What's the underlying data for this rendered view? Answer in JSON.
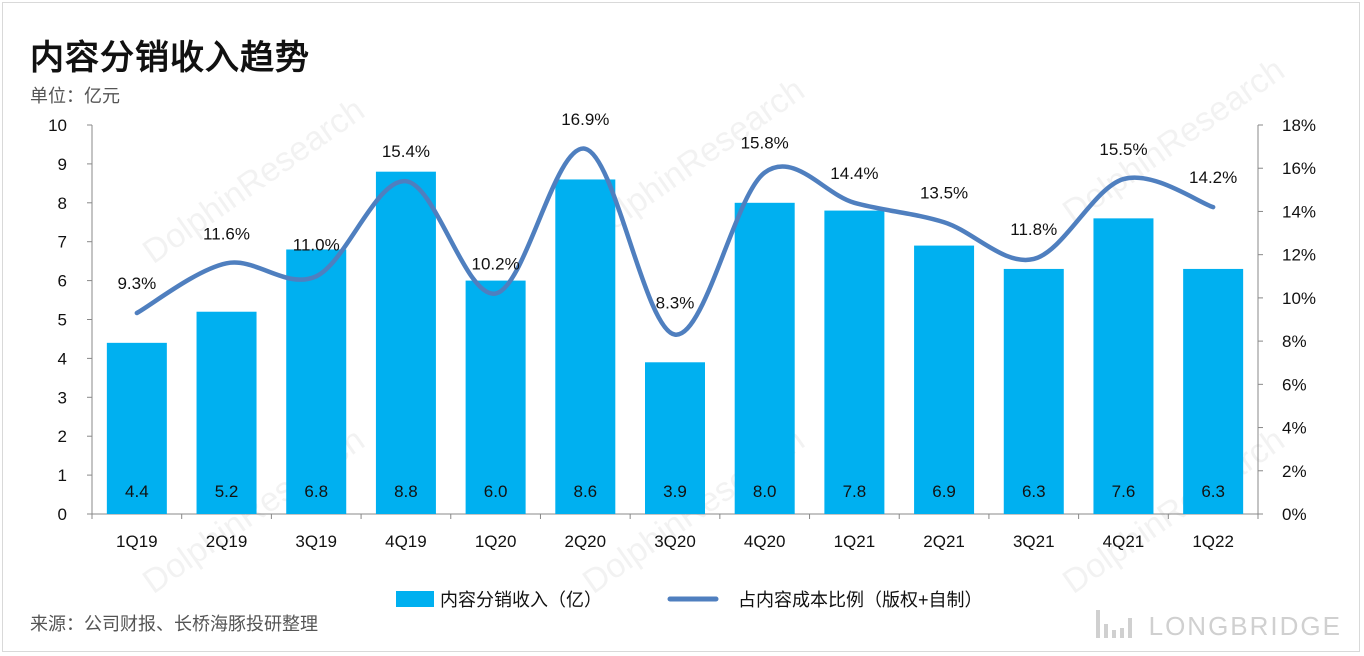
{
  "title": "内容分销收入趋势",
  "unit_label": "单位：亿元",
  "source": "来源：公司财报、长桥海豚投研整理",
  "brand": "LONGBRIDGE",
  "watermark": "DolphinResearch",
  "colors": {
    "bar": "#00b0f0",
    "line": "#4f7fbf",
    "axis": "#888888",
    "text": "#111111"
  },
  "chart_data": {
    "type": "bar+line",
    "categories": [
      "1Q19",
      "2Q19",
      "3Q19",
      "4Q19",
      "1Q20",
      "2Q20",
      "3Q20",
      "4Q20",
      "1Q21",
      "2Q21",
      "3Q21",
      "4Q21",
      "1Q22"
    ],
    "series": [
      {
        "name": "内容分销收入（亿）",
        "type": "bar",
        "axis": "left",
        "values": [
          4.4,
          5.2,
          6.8,
          8.8,
          6.0,
          8.6,
          3.9,
          8.0,
          7.8,
          6.9,
          6.3,
          7.6,
          6.3
        ],
        "labels": [
          "4.4",
          "5.2",
          "6.8",
          "8.8",
          "6.0",
          "8.6",
          "3.9",
          "8.0",
          "7.8",
          "6.9",
          "6.3",
          "7.6",
          "6.3"
        ]
      },
      {
        "name": "占内容成本比例（版权+自制）",
        "type": "line",
        "axis": "right",
        "values": [
          9.3,
          11.6,
          11.0,
          15.4,
          10.2,
          16.9,
          8.3,
          15.8,
          14.4,
          13.5,
          11.8,
          15.5,
          14.2
        ],
        "labels": [
          "9.3%",
          "11.6%",
          "11.0%",
          "15.4%",
          "10.2%",
          "16.9%",
          "8.3%",
          "15.8%",
          "14.4%",
          "13.5%",
          "11.8%",
          "15.5%",
          "14.2%"
        ]
      }
    ],
    "y_left": {
      "min": 0,
      "max": 10,
      "ticks": [
        "0",
        "1",
        "2",
        "3",
        "4",
        "5",
        "6",
        "7",
        "8",
        "9",
        "10"
      ]
    },
    "y_right": {
      "min": 0,
      "max": 18,
      "ticks": [
        "0%",
        "2%",
        "4%",
        "6%",
        "8%",
        "10%",
        "12%",
        "14%",
        "16%",
        "18%"
      ]
    },
    "grid": false,
    "legend_position": "bottom"
  }
}
